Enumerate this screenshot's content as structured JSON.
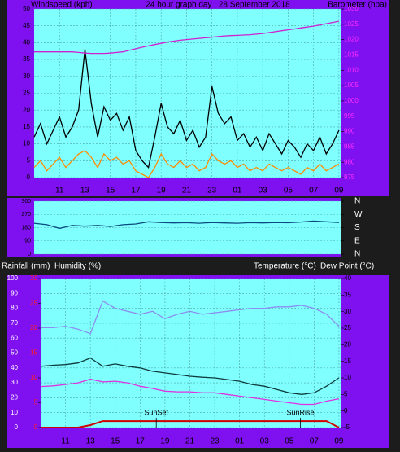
{
  "chart_data": [
    {
      "type": "line",
      "title": "24 hour graph day : 28 September 2018",
      "ylabel": "Windspeed (kph)",
      "y2label": "Barometer (hpa)",
      "grid": true,
      "x": [
        9,
        9.5,
        10,
        10.5,
        11,
        11.5,
        12,
        12.5,
        13,
        13.5,
        14,
        14.5,
        15,
        15.5,
        16,
        16.5,
        17,
        17.5,
        18,
        18.5,
        19,
        19.5,
        20,
        20.5,
        21,
        21.5,
        22,
        22.5,
        23,
        23.5,
        24,
        24.5,
        25,
        25.5,
        26,
        26.5,
        27,
        27.5,
        28,
        28.5,
        29,
        29.5,
        30,
        30.5,
        31,
        31.5,
        32,
        32.5,
        33
      ],
      "xlim": [
        9,
        33.2
      ],
      "xticks": [
        11,
        13,
        15,
        17,
        19,
        21,
        23,
        {
          "value": 25,
          "label": "01"
        },
        {
          "value": 27,
          "label": "03"
        },
        {
          "value": 29,
          "label": "05"
        },
        {
          "value": 31,
          "label": "07"
        },
        {
          "value": 33,
          "label": "09"
        }
      ],
      "ylim": [
        0,
        50
      ],
      "yticks": [
        0,
        5,
        10,
        15,
        20,
        25,
        30,
        35,
        40,
        45,
        50
      ],
      "y2lim": [
        975,
        1030
      ],
      "y2ticks": [
        975,
        980,
        985,
        990,
        995,
        1000,
        1005,
        1010,
        1015,
        1020,
        1025,
        1030
      ],
      "series": [
        {
          "color": "#000000",
          "values": [
            12,
            16,
            10,
            14,
            18,
            12,
            15,
            20,
            38,
            22,
            12,
            21,
            17,
            19,
            14,
            18,
            8,
            5,
            3,
            12,
            22,
            15,
            13,
            17,
            11,
            14,
            9,
            12,
            27,
            19,
            16,
            18,
            11,
            13,
            9,
            12,
            8,
            13,
            10,
            7,
            11,
            9,
            6,
            10,
            8,
            12,
            7,
            10,
            14
          ]
        },
        {
          "color": "#ff8c00",
          "values": [
            3,
            5,
            2,
            4,
            6,
            3,
            5,
            7,
            8,
            6,
            3,
            7,
            5,
            6,
            4,
            5,
            2,
            1,
            0,
            3,
            7,
            4,
            3,
            5,
            3,
            4,
            2,
            3,
            7,
            5,
            4,
            5,
            3,
            4,
            2,
            3,
            2,
            4,
            3,
            2,
            3,
            2,
            1,
            3,
            2,
            4,
            2,
            3,
            4
          ]
        },
        {
          "color": "#d020d0",
          "axis": "y2",
          "values": [
            1016,
            1016,
            1016,
            1016,
            1016,
            1016,
            1016,
            1015.8,
            1015.6,
            1015.5,
            1015.5,
            1015.5,
            1015.6,
            1015.8,
            1016,
            1016.5,
            1017,
            1017.5,
            1018,
            1018.4,
            1018.8,
            1019.2,
            1019.5,
            1019.8,
            1020,
            1020.2,
            1020.4,
            1020.6,
            1020.8,
            1021,
            1021.2,
            1021.3,
            1021.4,
            1021.5,
            1021.6,
            1021.8,
            1022,
            1022.3,
            1022.6,
            1022.9,
            1023.2,
            1023.5,
            1023.8,
            1024.1,
            1024.4,
            1024.8,
            1025.2,
            1025.6,
            1026
          ]
        }
      ]
    },
    {
      "type": "line",
      "grid": true,
      "x": [
        9,
        10,
        11,
        12,
        13,
        14,
        15,
        16,
        17,
        18,
        19,
        20,
        21,
        22,
        23,
        24,
        25,
        26,
        27,
        28,
        29,
        30,
        31,
        32,
        33
      ],
      "xlim": [
        9,
        33.2
      ],
      "ylim": [
        0,
        360
      ],
      "yticks": [
        0,
        90,
        180,
        270,
        360
      ],
      "y2lim": [
        0,
        360
      ],
      "y2ticks": [
        {
          "value": 360,
          "label": "N"
        },
        {
          "value": 270,
          "label": "W"
        },
        {
          "value": 180,
          "label": "S"
        },
        {
          "value": 90,
          "label": "E"
        },
        {
          "value": 0,
          "label": "N"
        }
      ],
      "series": [
        {
          "color": "#0a4a80",
          "values": [
            210,
            200,
            175,
            195,
            190,
            195,
            188,
            200,
            205,
            220,
            215,
            212,
            214,
            210,
            215,
            212,
            210,
            214,
            212,
            215,
            213,
            218,
            225,
            220,
            215
          ]
        }
      ]
    },
    {
      "type": "line",
      "labels_left": [
        "Rainfall (mm)",
        "Humidity (%)"
      ],
      "labels_right": [
        "Temperature (°C)",
        "Dew Point (°C)"
      ],
      "grid": true,
      "x": [
        9,
        10,
        11,
        12,
        13,
        14,
        15,
        16,
        17,
        18,
        19,
        20,
        21,
        22,
        23,
        24,
        25,
        26,
        27,
        28,
        29,
        30,
        31,
        32,
        33
      ],
      "xlim": [
        9,
        33.2
      ],
      "xticks": [
        11,
        13,
        15,
        17,
        19,
        21,
        23,
        {
          "value": 25,
          "label": "01"
        },
        {
          "value": 27,
          "label": "03"
        },
        {
          "value": 29,
          "label": "05"
        },
        {
          "value": 31,
          "label": "07"
        },
        {
          "value": 33,
          "label": "09"
        }
      ],
      "ylim": [
        0,
        100
      ],
      "yticks": [
        0,
        10,
        20,
        30,
        40,
        50,
        60,
        70,
        80,
        90,
        100
      ],
      "y2lim": [
        -5,
        40
      ],
      "y2ticks": [
        -5,
        0,
        5,
        10,
        15,
        20,
        25,
        30,
        35,
        40
      ],
      "y3lim": [
        0,
        30
      ],
      "y3ticks": [
        0,
        5,
        10,
        15,
        20,
        25,
        30
      ],
      "annotations": [
        {
          "text": "SunSet",
          "x": 18.3
        },
        {
          "text": "SunRise",
          "x": 29.9
        }
      ],
      "series": [
        {
          "color": "#8c8cf0",
          "values": [
            67,
            67,
            68,
            66,
            63,
            85,
            80,
            78,
            76,
            78,
            73,
            76,
            78,
            76,
            77,
            78,
            79,
            80,
            80,
            81,
            81,
            82,
            80,
            76,
            68
          ]
        },
        {
          "color": "#0e3c3c",
          "axis": "y2",
          "values": [
            13.5,
            13.8,
            14,
            14.5,
            16,
            13.5,
            14.2,
            13.5,
            13,
            12,
            11.5,
            11,
            10.5,
            10.2,
            10,
            9.5,
            9,
            8,
            7.5,
            6.5,
            5.5,
            5,
            5.5,
            7.5,
            10
          ]
        },
        {
          "color": "#e030e0",
          "axis": "y2",
          "values": [
            7.4,
            7.6,
            8,
            8.5,
            9.6,
            8.8,
            9,
            8.5,
            7.5,
            6.8,
            6,
            5.8,
            5.8,
            5.5,
            5.5,
            5,
            4.5,
            4,
            3.5,
            3,
            2.5,
            2,
            2,
            3,
            3.7
          ]
        },
        {
          "color": "#d00000",
          "axis": "y3",
          "values": [
            0,
            0,
            0,
            0,
            0.5,
            1.3,
            1.3,
            1.3,
            1.3,
            1.3,
            1.3,
            1.3,
            1.3,
            1.3,
            1.3,
            1.3,
            1.3,
            1.3,
            1.3,
            1.3,
            1.3,
            1.3,
            1.3,
            1.3,
            0
          ]
        }
      ]
    }
  ]
}
